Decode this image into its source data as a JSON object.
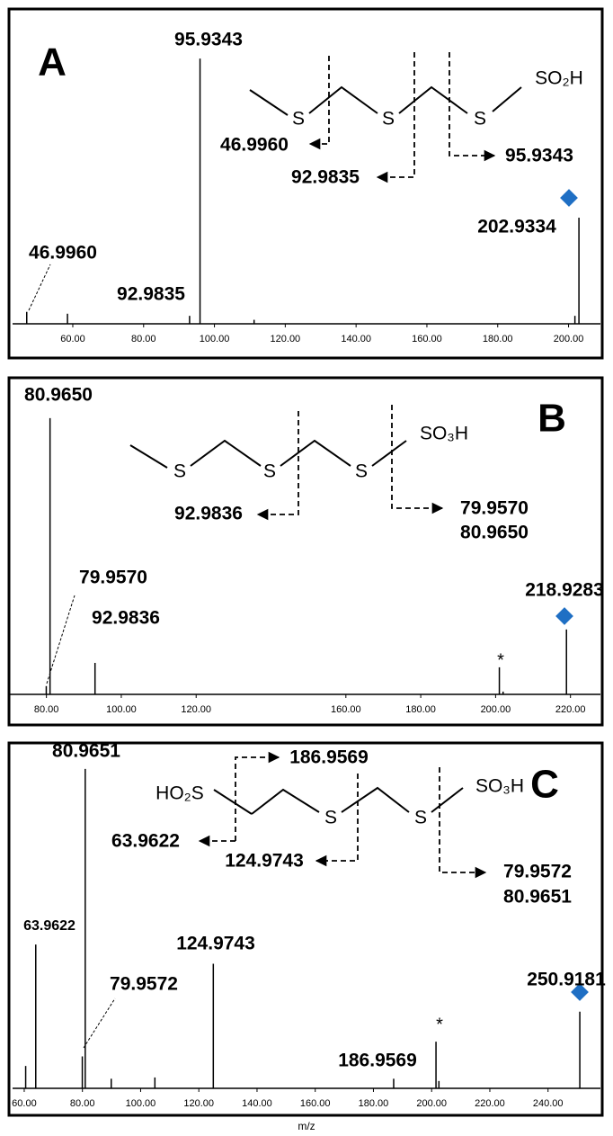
{
  "chart_data": [
    {
      "type": "bar",
      "panel": "A",
      "x": [
        46.996,
        58.5,
        92.9835,
        95.9343,
        111.2,
        201.8,
        202.9334
      ],
      "values": [
        4.5,
        3.8,
        3,
        100,
        1.5,
        3,
        40
      ],
      "peak_labels": [
        "46.9960",
        null,
        "92.9835",
        "95.9343",
        null,
        null,
        "202.9334"
      ],
      "xlim": [
        43,
        209
      ],
      "xticks": [
        {
          "value": 60,
          "label": "60.00"
        },
        {
          "value": 80,
          "label": "80.00"
        },
        {
          "value": 100,
          "label": "100.00"
        },
        {
          "value": 120,
          "label": "120.00"
        },
        {
          "value": 140,
          "label": "140.00"
        },
        {
          "value": 160,
          "label": "160.00"
        },
        {
          "value": 180,
          "label": "180.00"
        },
        {
          "value": 200,
          "label": "200.00"
        }
      ],
      "ylim": [
        0,
        118
      ],
      "color": "#000000",
      "structure": {
        "groups": [
          "S",
          "S",
          "S",
          "SO₂H"
        ],
        "fragments": [
          "46.9960",
          "92.9835",
          "95.9343"
        ]
      }
    },
    {
      "type": "bar",
      "panel": "B",
      "x": [
        79.957,
        80.965,
        92.9836,
        201.0,
        202.0,
        218.9283
      ],
      "values": [
        3,
        100,
        11.4,
        9.8,
        1,
        23.5
      ],
      "peak_labels": [
        "79.9570",
        "80.9650",
        "92.9836",
        null,
        null,
        "218.9283"
      ],
      "marked_peak": {
        "index": 3,
        "symbol": "*"
      },
      "xlim": [
        70,
        228
      ],
      "xticks": [
        {
          "value": 80,
          "label": "80.00"
        },
        {
          "value": 100,
          "label": "100.00"
        },
        {
          "value": 120,
          "label": "120.00"
        },
        {
          "value": 160,
          "label": "160.00"
        },
        {
          "value": 180,
          "label": "180.00"
        },
        {
          "value": 200,
          "label": "200.00"
        },
        {
          "value": 220,
          "label": "220.00"
        }
      ],
      "ylim": [
        0,
        113
      ],
      "color": "#000000",
      "structure": {
        "groups": [
          "S",
          "S",
          "S",
          "SO₃H"
        ],
        "fragments": [
          "92.9836",
          "79.9570",
          "80.9650"
        ]
      }
    },
    {
      "type": "bar",
      "panel": "C",
      "x_label": "m/z",
      "x": [
        60.5,
        63.9622,
        79.9572,
        80.9651,
        89.9,
        104.9,
        124.9743,
        186.9569,
        201.5,
        202.5,
        250.9181
      ],
      "values": [
        7,
        45,
        10,
        100,
        3,
        3.4,
        39,
        3,
        14.6,
        2.3,
        24
      ],
      "peak_labels": [
        null,
        "63.9622",
        "79.9572",
        "80.9651",
        null,
        null,
        "124.9743",
        "186.9569",
        null,
        null,
        "250.9181"
      ],
      "marked_peak": {
        "index": 8,
        "symbol": "*"
      },
      "xlim": [
        56,
        258
      ],
      "xticks": [
        {
          "value": 60,
          "label": "60.00"
        },
        {
          "value": 80,
          "label": "80.00"
        },
        {
          "value": 100,
          "label": "100.00"
        },
        {
          "value": 120,
          "label": "120.00"
        },
        {
          "value": 140,
          "label": "140.00"
        },
        {
          "value": 160,
          "label": "160.00"
        },
        {
          "value": 180,
          "label": "180.00"
        },
        {
          "value": 200,
          "label": "200.00"
        },
        {
          "value": 220,
          "label": "220.00"
        },
        {
          "value": 240,
          "label": "240.00"
        }
      ],
      "ylim": [
        0,
        107
      ],
      "color": "#000000",
      "structure": {
        "groups": [
          "HO₂S",
          "S",
          "S",
          "SO₃H"
        ],
        "fragments": [
          "186.9569",
          "63.9622",
          "124.9743",
          "79.9572",
          "80.9651"
        ]
      }
    }
  ]
}
